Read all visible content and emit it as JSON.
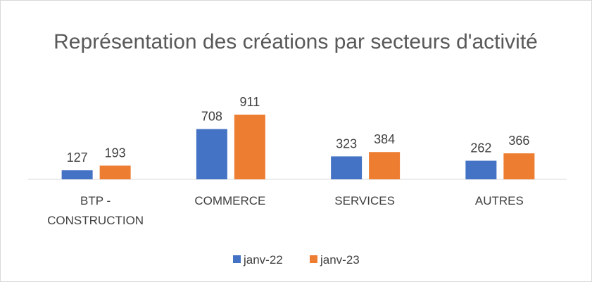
{
  "chart_data": {
    "type": "bar",
    "title": "Représentation des créations par secteurs d'activité",
    "categories": [
      "BTP - CONSTRUCTION",
      "COMMERCE",
      "SERVICES",
      "AUTRES"
    ],
    "series": [
      {
        "name": "janv-22",
        "color": "#4472c4",
        "values": [
          127,
          708,
          323,
          262
        ]
      },
      {
        "name": "janv-23",
        "color": "#ed7d31",
        "values": [
          193,
          911,
          384,
          366
        ]
      }
    ],
    "legend": "bottom"
  }
}
